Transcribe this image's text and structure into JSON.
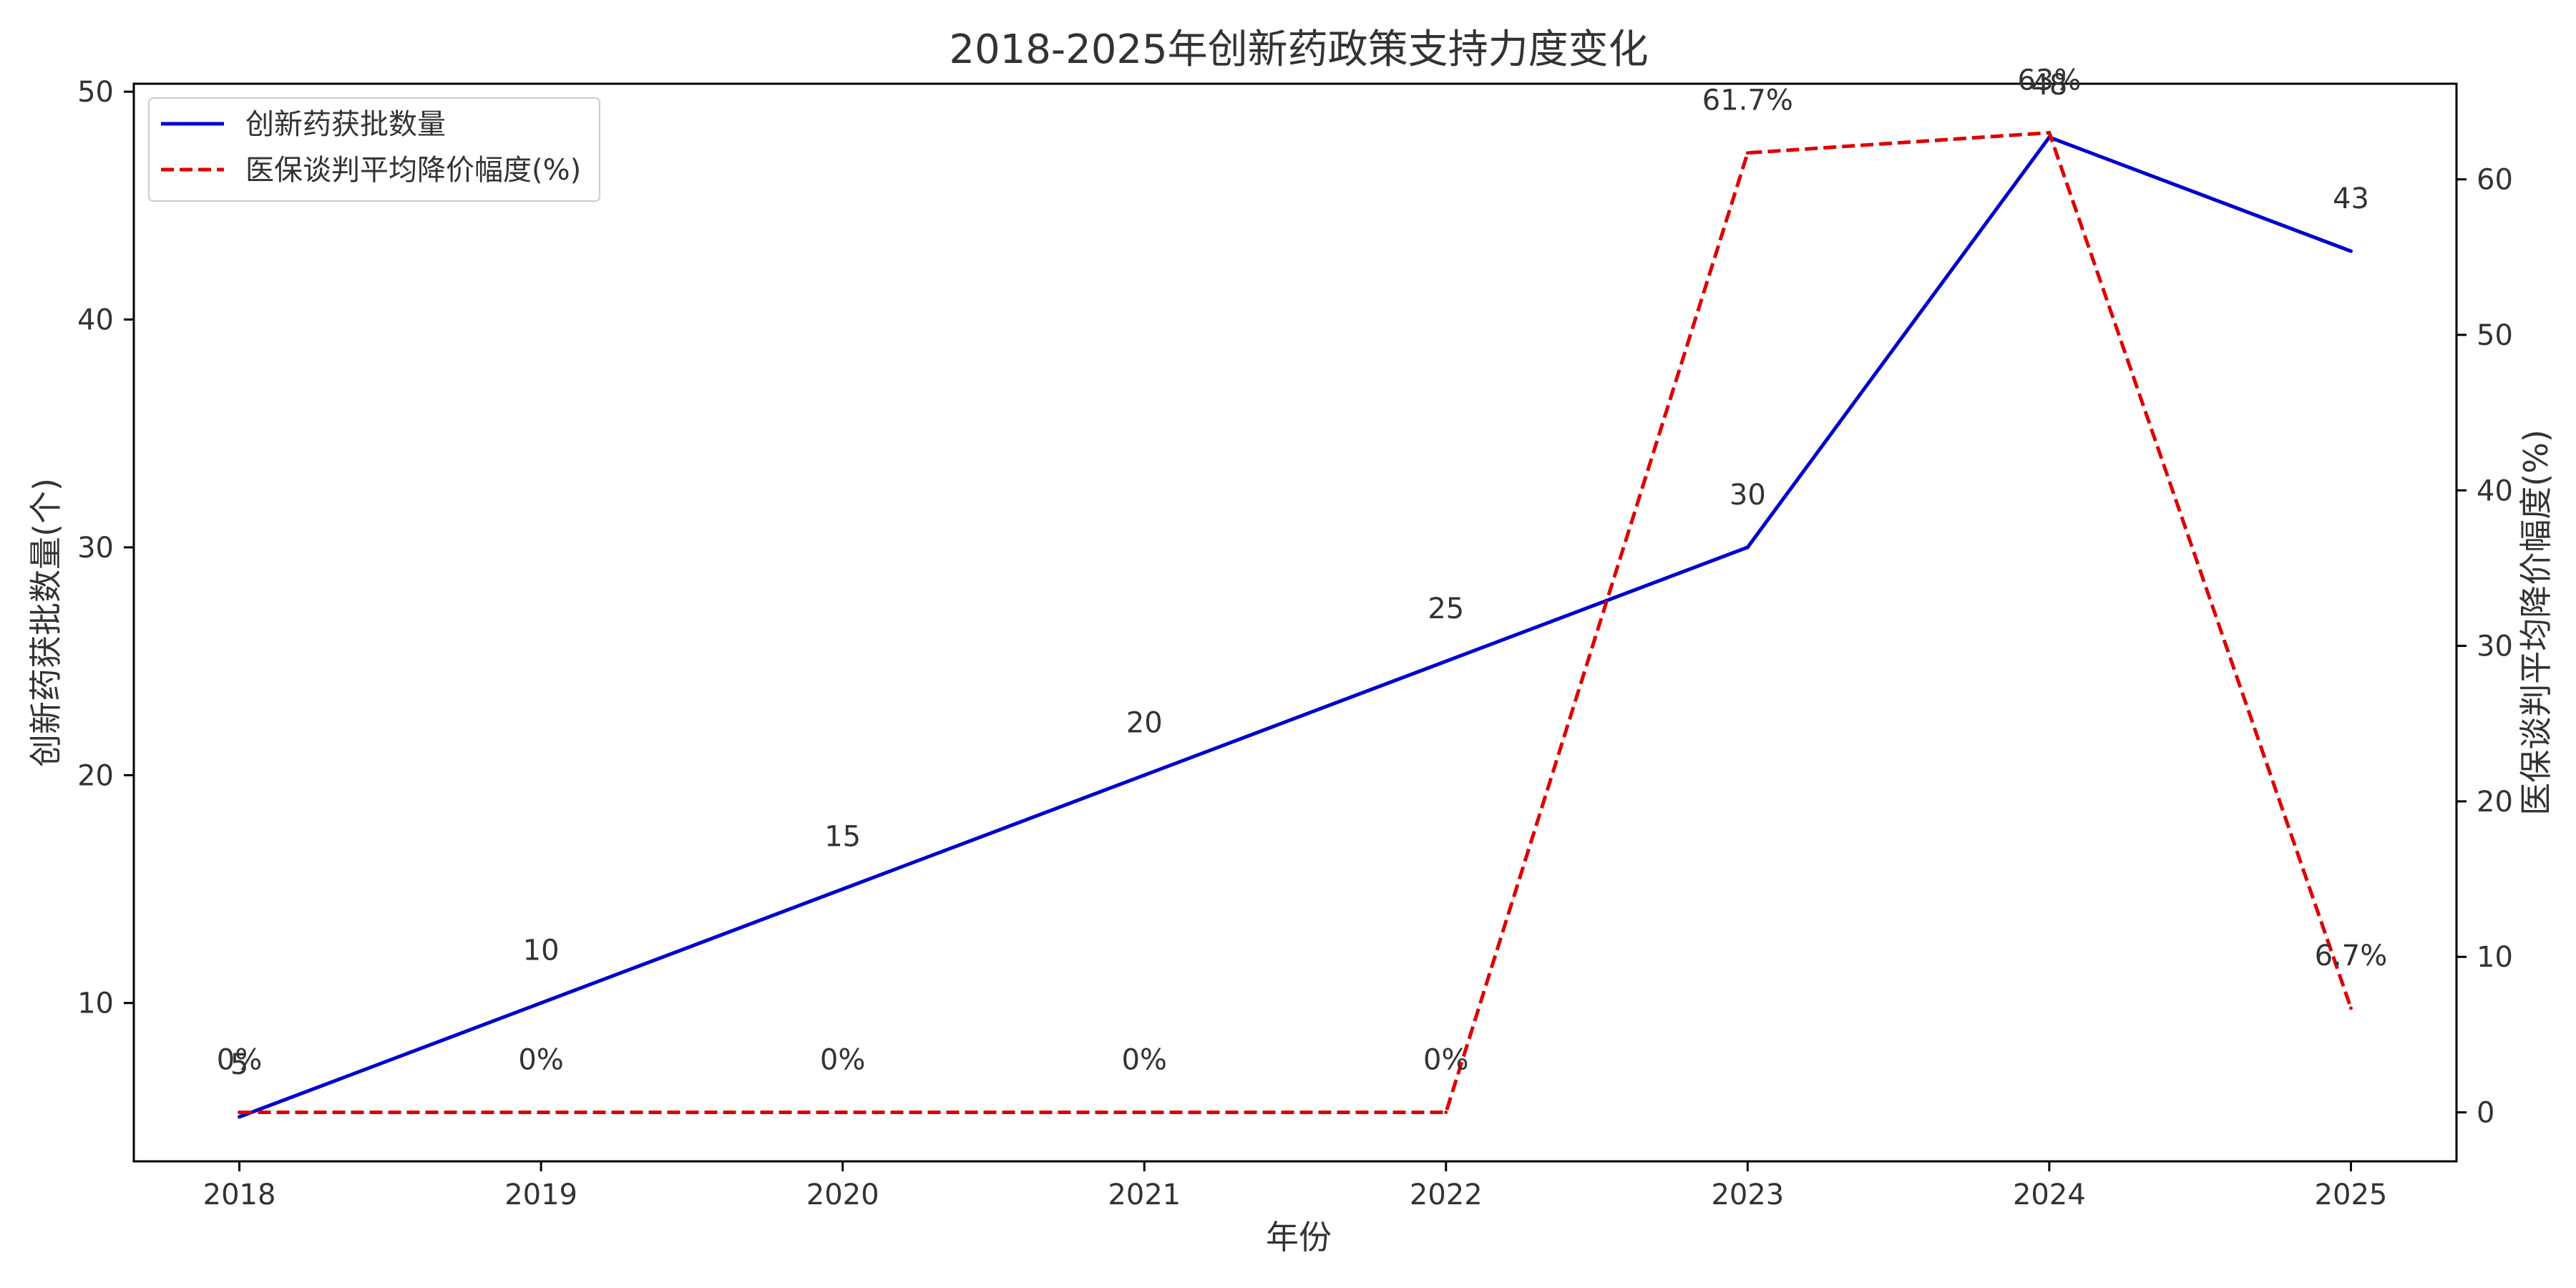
{
  "chart_data": {
    "type": "line",
    "title": "2018-2025年创新药政策支持力度变化",
    "xlabel": "年份",
    "ylabel_left": "创新药获批数量(个)",
    "ylabel_right": "医保谈判平均降价幅度(%)",
    "x": [
      "2018",
      "2019",
      "2020",
      "2021",
      "2022",
      "2023",
      "2024",
      "2025"
    ],
    "xlim": [
      2017.65,
      2025.35
    ],
    "ylim_left": [
      3.05,
      50.35
    ],
    "ylim_right": [
      -3.15,
      66.15
    ],
    "yticks_left": [
      "10",
      "20",
      "30",
      "40",
      "50"
    ],
    "yticks_right": [
      "0",
      "10",
      "20",
      "30",
      "40",
      "50",
      "60"
    ],
    "grid": false,
    "legend_position": "top-left",
    "series": [
      {
        "name": "创新药获批数量",
        "axis": "left",
        "color": "#0000cc",
        "dash": "solid",
        "values": [
          5,
          10,
          15,
          20,
          25,
          30,
          48,
          43
        ],
        "labels": [
          "5",
          "10",
          "15",
          "20",
          "25",
          "30",
          "48",
          "43"
        ]
      },
      {
        "name": "医保谈判平均降价幅度(%)",
        "axis": "right",
        "color": "#dd0000",
        "dash": "dashed",
        "values": [
          0,
          0,
          0,
          0,
          0,
          61.7,
          63,
          6.7
        ],
        "labels": [
          "0%",
          "0%",
          "0%",
          "0%",
          "0%",
          "61.7%",
          "63%",
          "6.7%"
        ]
      }
    ]
  }
}
